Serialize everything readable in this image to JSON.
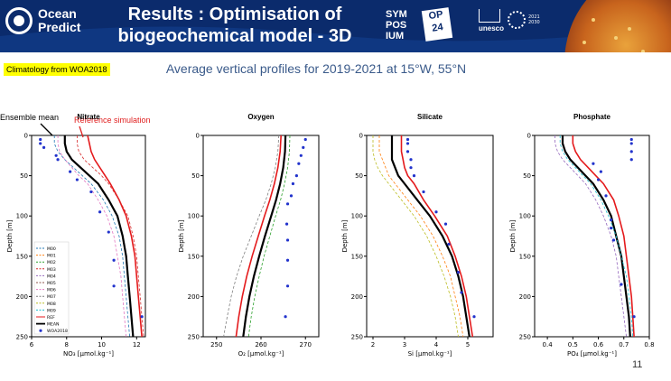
{
  "header": {
    "logo_text_1": "Ocean",
    "logo_text_2": "Predict",
    "title_line1": "Results : Optimisation of",
    "title_line2": "biogeochemical model - 3D",
    "symposium": [
      "SYM",
      "POS",
      "IUM"
    ],
    "op_label": "OP",
    "op_number": "24",
    "unesco": "unesco",
    "decade_years": "2021\n2030"
  },
  "tag": "Climatology from WOA2018",
  "subtitle": "Average vertical profiles for 2019-2021 at 15°W, 55°N",
  "annotations": {
    "ensemble": "Ensemble mean",
    "reference": "Reference simulation"
  },
  "page_number": "11",
  "colors": {
    "header_bg": "#0b2b6c",
    "ref": "#e41a1c",
    "mean": "#000000",
    "obs": "#2233cc"
  },
  "legend": [
    "M00",
    "M01",
    "M02",
    "M03",
    "M04",
    "M05",
    "M06",
    "M07",
    "M08",
    "M09",
    "REF",
    "MEAN",
    "WOA2018"
  ],
  "chart_data": [
    {
      "type": "line",
      "title": "Nitrate",
      "xlabel": "NO₃ [µmol.kg⁻¹]",
      "ylabel": "Depth [m]",
      "xlim": [
        6,
        12.5
      ],
      "ylim": [
        250,
        0
      ],
      "xticks": [
        6,
        8,
        10,
        12
      ],
      "yticks": [
        0,
        50,
        100,
        150,
        200,
        250
      ],
      "depth": [
        0,
        10,
        20,
        30,
        40,
        50,
        60,
        80,
        100,
        125,
        150,
        175,
        200,
        225,
        250
      ],
      "series": [
        {
          "name": "MEAN",
          "values": [
            7.9,
            7.9,
            8.0,
            8.3,
            8.8,
            9.3,
            9.8,
            10.4,
            10.9,
            11.2,
            11.4,
            11.5,
            11.6,
            11.7,
            11.8
          ]
        },
        {
          "name": "REF",
          "values": [
            9.2,
            9.3,
            9.4,
            9.6,
            9.9,
            10.2,
            10.5,
            11.0,
            11.4,
            11.7,
            11.9,
            12.0,
            12.1,
            12.2,
            12.3
          ]
        },
        {
          "name": "M00",
          "values": [
            7.3,
            7.3,
            7.5,
            7.9,
            8.4,
            8.9,
            9.4,
            10.1,
            10.6,
            11.0,
            11.2,
            11.3,
            11.4,
            11.5,
            11.6
          ]
        },
        {
          "name": "M03",
          "values": [
            8.6,
            8.6,
            8.7,
            9.0,
            9.5,
            10.0,
            10.4,
            11.0,
            11.5,
            11.8,
            12.0,
            12.1,
            12.2,
            12.3,
            12.4
          ]
        },
        {
          "name": "M06",
          "values": [
            7.5,
            7.5,
            7.6,
            7.9,
            8.3,
            8.7,
            9.2,
            9.8,
            10.3,
            10.7,
            10.9,
            11.1,
            11.2,
            11.3,
            11.4
          ]
        }
      ],
      "obs": [
        [
          6.5,
          5
        ],
        [
          6.5,
          10
        ],
        [
          6.7,
          15
        ],
        [
          7.4,
          25
        ],
        [
          7.5,
          30
        ],
        [
          8.2,
          45
        ],
        [
          8.6,
          55
        ],
        [
          9.4,
          70
        ],
        [
          9.9,
          95
        ],
        [
          10.4,
          120
        ],
        [
          10.7,
          155
        ],
        [
          10.7,
          187
        ],
        [
          12.3,
          225
        ]
      ]
    },
    {
      "type": "line",
      "title": "Oxygen",
      "xlabel": "O₂ [µmol.kg⁻¹]",
      "ylabel": "Depth [m]",
      "xlim": [
        247,
        273
      ],
      "ylim": [
        250,
        0
      ],
      "xticks": [
        250,
        260,
        270
      ],
      "yticks": [
        0,
        50,
        100,
        150,
        200,
        250
      ],
      "depth": [
        0,
        20,
        40,
        60,
        80,
        100,
        125,
        150,
        175,
        200,
        225,
        250
      ],
      "series": [
        {
          "name": "MEAN",
          "values": [
            265.5,
            265.4,
            265.0,
            264.3,
            263.4,
            262.3,
            260.9,
            259.6,
            258.4,
            257.4,
            256.6,
            256.0
          ]
        },
        {
          "name": "REF",
          "values": [
            264.5,
            264.3,
            263.8,
            263.0,
            262.0,
            260.8,
            259.4,
            258.0,
            256.8,
            255.8,
            255.0,
            254.4
          ]
        },
        {
          "name": "M02",
          "values": [
            266.5,
            266.4,
            266.0,
            265.3,
            264.4,
            263.3,
            262.0,
            260.7,
            259.6,
            258.6,
            257.8,
            257.2
          ]
        },
        {
          "name": "M07",
          "values": [
            264.0,
            263.8,
            263.2,
            262.3,
            261.1,
            259.6,
            257.8,
            256.0,
            254.5,
            253.3,
            252.4,
            251.6
          ]
        }
      ],
      "obs": [
        [
          270,
          5
        ],
        [
          269.5,
          15
        ],
        [
          269,
          25
        ],
        [
          268.5,
          35
        ],
        [
          268,
          50
        ],
        [
          267.2,
          60
        ],
        [
          266.8,
          75
        ],
        [
          266,
          85
        ],
        [
          265.8,
          110
        ],
        [
          266,
          130
        ],
        [
          266,
          155
        ],
        [
          266,
          187
        ],
        [
          265.5,
          225
        ]
      ]
    },
    {
      "type": "line",
      "title": "Silicate",
      "xlabel": "Si [µmol.kg⁻¹]",
      "ylabel": "Depth [m]",
      "xlim": [
        1.8,
        5.8
      ],
      "ylim": [
        250,
        0
      ],
      "xticks": [
        2,
        3,
        4,
        5
      ],
      "yticks": [
        0,
        50,
        100,
        150,
        200,
        250
      ],
      "depth": [
        0,
        10,
        20,
        30,
        40,
        50,
        60,
        80,
        100,
        125,
        150,
        175,
        200,
        225,
        250
      ],
      "series": [
        {
          "name": "MEAN",
          "values": [
            2.6,
            2.6,
            2.6,
            2.6,
            2.7,
            2.8,
            3.0,
            3.4,
            3.8,
            4.2,
            4.5,
            4.7,
            4.85,
            4.95,
            5.05
          ]
        },
        {
          "name": "REF",
          "values": [
            2.9,
            2.9,
            2.9,
            2.95,
            3.0,
            3.1,
            3.3,
            3.6,
            3.95,
            4.35,
            4.6,
            4.8,
            4.95,
            5.05,
            5.15
          ]
        },
        {
          "name": "M01",
          "values": [
            2.2,
            2.2,
            2.2,
            2.3,
            2.4,
            2.5,
            2.7,
            3.1,
            3.5,
            3.9,
            4.2,
            4.45,
            4.6,
            4.75,
            4.85
          ]
        },
        {
          "name": "M08",
          "values": [
            2.0,
            2.0,
            2.0,
            2.05,
            2.15,
            2.3,
            2.5,
            2.9,
            3.3,
            3.7,
            4.0,
            4.25,
            4.45,
            4.6,
            4.7
          ]
        }
      ],
      "obs": [
        [
          3.1,
          5
        ],
        [
          3.1,
          10
        ],
        [
          3.1,
          20
        ],
        [
          3.2,
          30
        ],
        [
          3.2,
          40
        ],
        [
          3.3,
          50
        ],
        [
          3.6,
          70
        ],
        [
          4.0,
          95
        ],
        [
          4.3,
          110
        ],
        [
          4.4,
          135
        ],
        [
          4.7,
          170
        ],
        [
          4.8,
          195
        ],
        [
          5.2,
          225
        ]
      ]
    },
    {
      "type": "line",
      "title": "Phosphate",
      "xlabel": "PO₄ [µmol.kg⁻¹]",
      "ylabel": "Depth [m]",
      "xlim": [
        0.35,
        0.8
      ],
      "ylim": [
        250,
        0
      ],
      "xticks": [
        0.4,
        0.5,
        0.6,
        0.7,
        0.8
      ],
      "yticks": [
        0,
        50,
        100,
        150,
        200,
        250
      ],
      "depth": [
        0,
        10,
        20,
        30,
        40,
        50,
        60,
        80,
        100,
        125,
        150,
        175,
        200,
        225,
        250
      ],
      "series": [
        {
          "name": "MEAN",
          "values": [
            0.46,
            0.46,
            0.47,
            0.49,
            0.52,
            0.55,
            0.58,
            0.62,
            0.65,
            0.67,
            0.69,
            0.7,
            0.71,
            0.72,
            0.725
          ]
        },
        {
          "name": "REF",
          "values": [
            0.5,
            0.5,
            0.51,
            0.53,
            0.56,
            0.59,
            0.62,
            0.66,
            0.68,
            0.7,
            0.71,
            0.72,
            0.73,
            0.735,
            0.74
          ]
        },
        {
          "name": "M04",
          "values": [
            0.43,
            0.43,
            0.44,
            0.46,
            0.49,
            0.52,
            0.55,
            0.59,
            0.62,
            0.65,
            0.67,
            0.68,
            0.69,
            0.7,
            0.71
          ]
        },
        {
          "name": "M09",
          "values": [
            0.45,
            0.45,
            0.46,
            0.48,
            0.51,
            0.54,
            0.57,
            0.61,
            0.64,
            0.67,
            0.69,
            0.71,
            0.72,
            0.73,
            0.735
          ]
        }
      ],
      "obs": [
        [
          0.73,
          5
        ],
        [
          0.73,
          10
        ],
        [
          0.73,
          20
        ],
        [
          0.73,
          30
        ],
        [
          0.58,
          35
        ],
        [
          0.61,
          45
        ],
        [
          0.6,
          55
        ],
        [
          0.63,
          75
        ],
        [
          0.65,
          105
        ],
        [
          0.65,
          115
        ],
        [
          0.66,
          130
        ],
        [
          0.69,
          185
        ],
        [
          0.74,
          225
        ]
      ]
    }
  ]
}
